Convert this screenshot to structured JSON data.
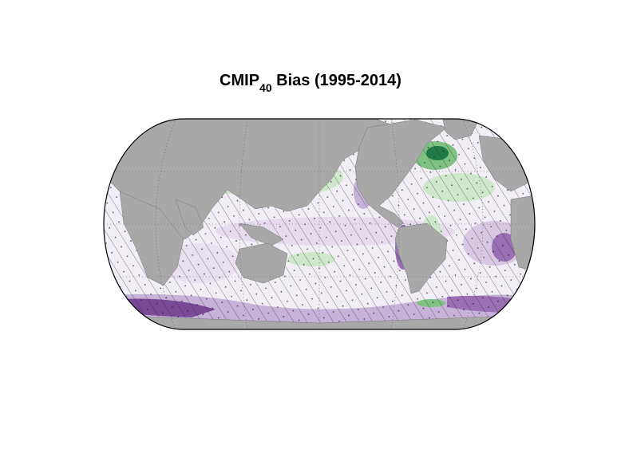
{
  "title": {
    "prefix": "CMIP",
    "subscript": "40",
    "suffix": " Bias (1995-2014)"
  },
  "map": {
    "projection": "equal-earth",
    "land_color": "#a8a8a8",
    "colors": {
      "neutral": "#f2eef6",
      "light_purple": "#d8c8e4",
      "medium_purple": "#9a6fb4",
      "dark_purple": "#5a1f72",
      "light_green": "#cfe8cc",
      "medium_green": "#7fc283",
      "dark_green": "#1f7a45"
    },
    "hatching": "stippled-diagonal",
    "graticule": "dotted",
    "colorbar": false
  }
}
